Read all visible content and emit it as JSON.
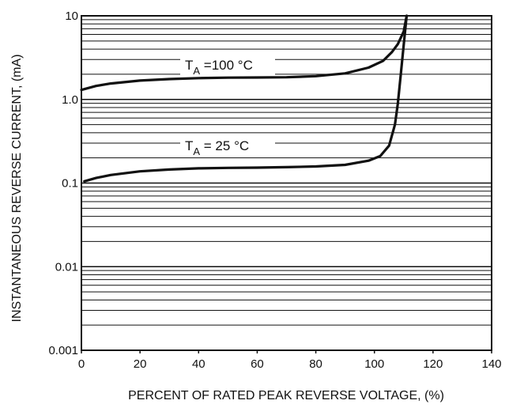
{
  "chart_data": {
    "type": "line",
    "title": "",
    "xlabel": "PERCENT OF RATED PEAK REVERSE VOLTAGE, (%)",
    "ylabel": "INSTANTANEOUS REVERSE CURRENT, (mA)",
    "xlim": [
      0,
      140
    ],
    "ylim": [
      0.001,
      10
    ],
    "y_scale": "log",
    "grid": "horizontal log grid",
    "x_ticks": [
      "0",
      "20",
      "40",
      "60",
      "80",
      "100",
      "120",
      "140"
    ],
    "y_ticks": [
      "10",
      "1.0",
      "0.1",
      "0.01",
      "0.001"
    ],
    "series": [
      {
        "label_main": "T",
        "label_sub": "A",
        "label_rest": " =100 °C",
        "color": "#111111",
        "points": [
          [
            0,
            1.3
          ],
          [
            5,
            1.45
          ],
          [
            10,
            1.55
          ],
          [
            20,
            1.68
          ],
          [
            30,
            1.75
          ],
          [
            40,
            1.8
          ],
          [
            50,
            1.82
          ],
          [
            60,
            1.83
          ],
          [
            70,
            1.84
          ],
          [
            80,
            1.9
          ],
          [
            90,
            2.05
          ],
          [
            98,
            2.4
          ],
          [
            103,
            2.9
          ],
          [
            106,
            3.7
          ],
          [
            108,
            4.6
          ],
          [
            110,
            6.5
          ],
          [
            111,
            10
          ]
        ]
      },
      {
        "label_main": "T",
        "label_sub": "A",
        "label_rest": " = 25 °C",
        "color": "#111111",
        "points": [
          [
            1,
            0.105
          ],
          [
            5,
            0.115
          ],
          [
            10,
            0.125
          ],
          [
            20,
            0.138
          ],
          [
            30,
            0.145
          ],
          [
            40,
            0.15
          ],
          [
            50,
            0.152
          ],
          [
            60,
            0.153
          ],
          [
            70,
            0.155
          ],
          [
            80,
            0.158
          ],
          [
            90,
            0.165
          ],
          [
            98,
            0.185
          ],
          [
            102,
            0.21
          ],
          [
            105,
            0.28
          ],
          [
            107,
            0.5
          ],
          [
            108,
            0.9
          ],
          [
            109,
            2.0
          ],
          [
            110,
            4.5
          ],
          [
            111,
            10
          ]
        ]
      }
    ]
  }
}
